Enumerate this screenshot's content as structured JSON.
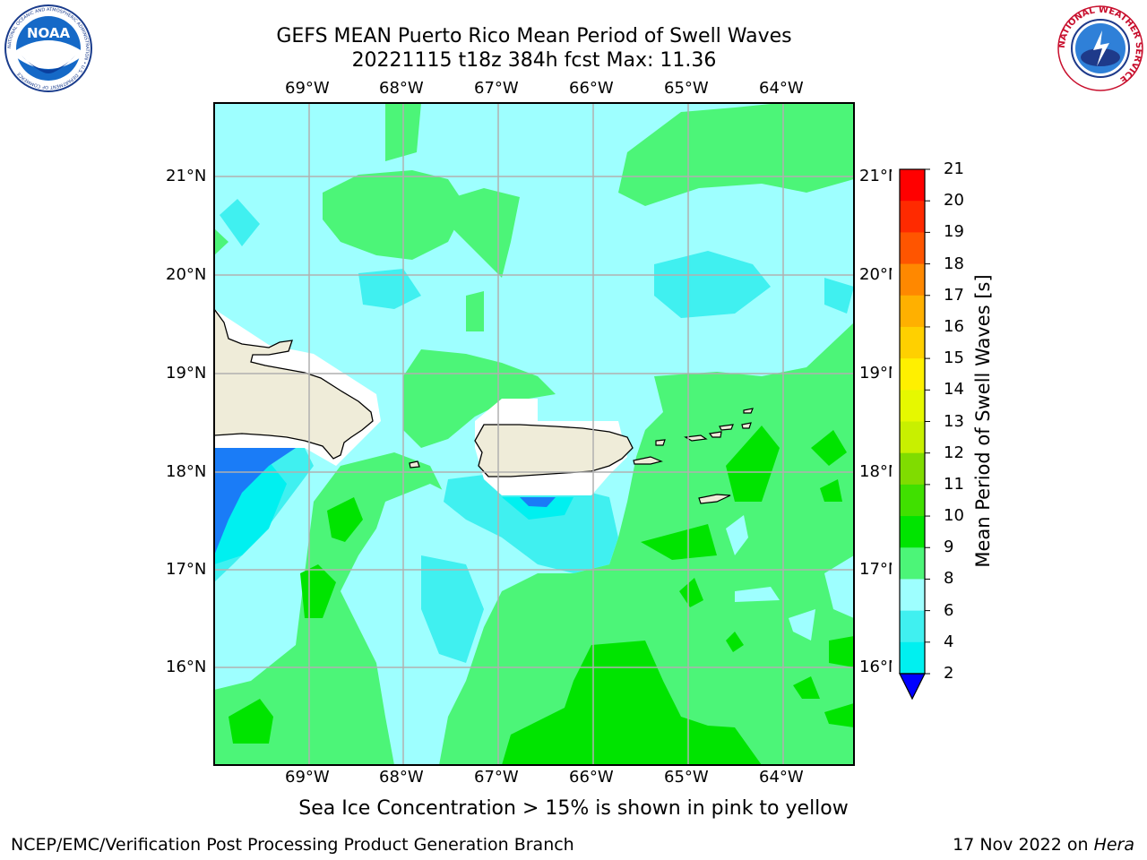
{
  "header": {
    "title_line1": "GEFS MEAN Puerto Rico Mean Period of Swell Waves",
    "title_line2": "20221115 t18z 384h fcst   Max: 11.36"
  },
  "logos": {
    "left": "noara-logo",
    "right": "nws-logo",
    "nws_text": "NATIONAL WEATHER SERVICE",
    "noaa_text": "NOAA",
    "noaa_ring_text": "NATIONAL OCEANIC AND ATMOSPHERIC ADMINISTRATION • U.S. DEPARTMENT OF COMMERCE"
  },
  "map": {
    "lon_labels": [
      "69°W",
      "68°W",
      "67°W",
      "66°W",
      "65°W",
      "64°W"
    ],
    "lat_labels": [
      "21°N",
      "20°N",
      "19°N",
      "18°N",
      "17°N",
      "16°N"
    ],
    "lon_range": [
      -70,
      -63.3
    ],
    "lat_range": [
      15,
      21.75
    ],
    "land_color": "#efecd9",
    "grid_color": "#b0b0b0",
    "islands": [
      "Hispaniola",
      "Puerto Rico",
      "Mona Island",
      "Vieques",
      "Culebra",
      "St. Thomas",
      "St. John",
      "Tortola",
      "Virgin Gorda",
      "Anegada",
      "St. Croix"
    ]
  },
  "colorbar": {
    "label": "Mean Period of Swell Waves [s]",
    "tick_labels": [
      "2",
      "4",
      "6",
      "8",
      "9",
      "10",
      "11",
      "12",
      "13",
      "14",
      "15",
      "16",
      "17",
      "18",
      "19",
      "20",
      "21"
    ],
    "colors": [
      "#0a3ef0",
      "#1a7cf7",
      "#00f0f0",
      "#40f0f0",
      "#9effff",
      "#4cf578",
      "#00e400",
      "#40e000",
      "#80dc00",
      "#c8f000",
      "#e6f800",
      "#fff000",
      "#ffd000",
      "#ffb000",
      "#ff8800",
      "#ff5500",
      "#ff2a00",
      "#ff0000"
    ],
    "extend_color": "#0000ff"
  },
  "contour_colors": {
    "c4": "#1a7cf7",
    "c6": "#00f0f0",
    "c8": "#40f0f0",
    "c9": "#9effff",
    "c10": "#4cf578",
    "c11": "#00e400"
  },
  "caption": "Sea Ice Concentration > 15% is shown in pink to yellow",
  "footer": {
    "left": "NCEP/EMC/Verification Post Processing Product Generation Branch",
    "right_date": "17 Nov 2022 on ",
    "right_host": "Hera"
  }
}
